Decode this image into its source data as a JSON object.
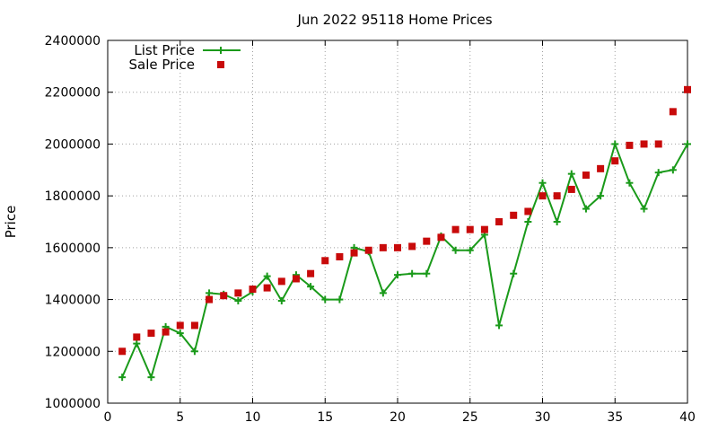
{
  "chart_data": {
    "type": "line",
    "title": "Jun 2022 95118 Home Prices",
    "xlabel": "",
    "ylabel": "Price",
    "xlim": [
      0,
      40
    ],
    "ylim": [
      1000000,
      2400000
    ],
    "x_ticks": [
      0,
      5,
      10,
      15,
      20,
      25,
      30,
      35,
      40
    ],
    "y_ticks": [
      1000000,
      1200000,
      1400000,
      1600000,
      1800000,
      2000000,
      2200000,
      2400000
    ],
    "grid": true,
    "legend_position": "top-left",
    "series": [
      {
        "name": "List Price",
        "style": "line-points",
        "marker": "plus",
        "color": "#1a9a1a",
        "x": [
          1,
          2,
          3,
          4,
          5,
          6,
          7,
          8,
          9,
          10,
          11,
          12,
          13,
          14,
          15,
          16,
          17,
          18,
          19,
          20,
          21,
          22,
          23,
          24,
          25,
          26,
          27,
          28,
          29,
          30,
          31,
          32,
          33,
          34,
          35,
          36,
          37,
          38,
          39,
          40
        ],
        "values": [
          1100000,
          1230000,
          1100000,
          1295000,
          1270000,
          1200000,
          1425000,
          1420000,
          1395000,
          1430000,
          1490000,
          1395000,
          1495000,
          1450000,
          1400000,
          1400000,
          1600000,
          1585000,
          1425000,
          1495000,
          1500000,
          1500000,
          1645000,
          1590000,
          1590000,
          1650000,
          1300000,
          1500000,
          1700000,
          1850000,
          1700000,
          1885000,
          1750000,
          1800000,
          2000000,
          1850000,
          1750000,
          1890000,
          1900000,
          2000000
        ]
      },
      {
        "name": "Sale Price",
        "style": "points",
        "marker": "square",
        "color": "#c80a0a",
        "x": [
          1,
          2,
          3,
          4,
          5,
          6,
          7,
          8,
          9,
          10,
          11,
          12,
          13,
          14,
          15,
          16,
          17,
          18,
          19,
          20,
          21,
          22,
          23,
          24,
          25,
          26,
          27,
          28,
          29,
          30,
          31,
          32,
          33,
          34,
          35,
          36,
          37,
          38,
          39,
          40
        ],
        "values": [
          1200000,
          1255000,
          1270000,
          1275000,
          1300000,
          1300000,
          1400000,
          1415000,
          1425000,
          1440000,
          1445000,
          1470000,
          1480000,
          1500000,
          1550000,
          1565000,
          1580000,
          1590000,
          1600000,
          1600000,
          1605000,
          1625000,
          1640000,
          1670000,
          1670000,
          1670000,
          1700000,
          1725000,
          1740000,
          1800000,
          1800000,
          1825000,
          1880000,
          1905000,
          1935000,
          1995000,
          2000000,
          2000000,
          2125000,
          2210000
        ]
      }
    ]
  }
}
